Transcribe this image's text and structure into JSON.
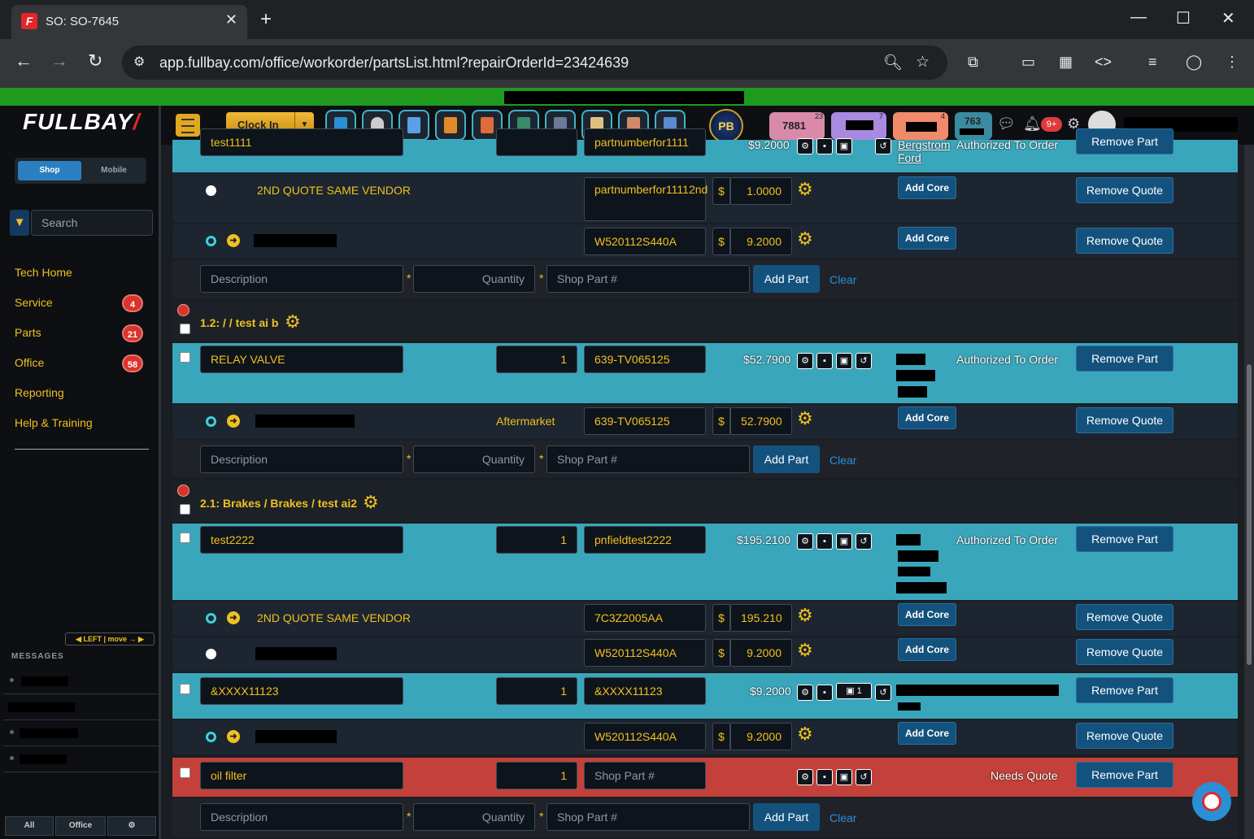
{
  "browser": {
    "tab_title": "SO: SO-7645",
    "tab_close": "✕",
    "new_tab": "+",
    "url": "app.fullbay.com/office/workorder/partsList.html?repairOrderId=23424639"
  },
  "app": {
    "logo": "FULLBAY",
    "clock_in": "Clock In",
    "pill_counts": {
      "a": "7881",
      "a_sup": "23",
      "b_sup": "7",
      "c_sup": "4",
      "d": "763"
    },
    "notif_badge": "9+",
    "pb_logo": "PB"
  },
  "sidebar": {
    "shop": "Shop",
    "mobile": "Mobile",
    "search_placeholder": "Search",
    "items": [
      {
        "label": "Tech Home"
      },
      {
        "label": "Service",
        "count": "4"
      },
      {
        "label": "Parts",
        "count": "21"
      },
      {
        "label": "Office",
        "count": "58"
      },
      {
        "label": "Reporting"
      },
      {
        "label": "Help & Training"
      }
    ],
    "move": "◀ LEFT  |  move → ▶",
    "messages": "MESSAGES",
    "bottom": [
      "All",
      "Office",
      "⚙"
    ]
  },
  "parts": {
    "top_partial": {
      "desc": "test1111",
      "part": "partnumberfor1111",
      "price": "$9.2000",
      "vendor_line1": "Bergstrom",
      "vendor_line2": "Ford",
      "status": "Authorized To Order",
      "btn": "Remove Part"
    },
    "q1": {
      "vendor": "2ND QUOTE SAME VENDOR",
      "part": "partnumberfor11112nd",
      "price": "1.0000"
    },
    "q2": {
      "part": "W520112S440A",
      "price": "9.2000"
    },
    "add_core": "Add Core",
    "remove_quote": "Remove Quote",
    "remove_part": "Remove Part",
    "new_row": {
      "desc_ph": "Description",
      "qty_ph": "Quantity",
      "shop_ph": "Shop Part #",
      "add": "Add Part",
      "clear": "Clear"
    },
    "sec1": {
      "title": "1.2: / / test ai b"
    },
    "relay": {
      "desc": "RELAY VALVE",
      "qty": "1",
      "part": "639-TV065125",
      "price": "$52.7900",
      "status": "Authorized To Order"
    },
    "relay_q": {
      "vendor": "Aftermarket",
      "part": "639-TV065125",
      "price": "52.7900"
    },
    "sec2": {
      "title": "2.1: Brakes / Brakes / test ai2"
    },
    "test2222": {
      "desc": "test2222",
      "qty": "1",
      "part": "pnfieldtest2222",
      "price": "$195.2100",
      "status": "Authorized To Order"
    },
    "t_q1": {
      "vendor": "2ND QUOTE SAME VENDOR",
      "part": "7C3Z2005AA",
      "price": "195.210"
    },
    "t_q2": {
      "part": "W520112S440A",
      "price": "9.2000"
    },
    "xxxx": {
      "desc": "&XXXX11123",
      "qty": "1",
      "part": "&XXXX11123",
      "price": "$9.2000",
      "badge": "1"
    },
    "x_q": {
      "part": "W520112S440A",
      "price": "9.2000"
    },
    "oil": {
      "desc": "oil filter",
      "qty": "1",
      "part_ph": "Shop Part #",
      "status": "Needs Quote"
    }
  },
  "colors": {
    "teal": "#3aa6bb",
    "red": "#c3413a",
    "accent": "#f0c020",
    "green": "#1f9a1f"
  }
}
